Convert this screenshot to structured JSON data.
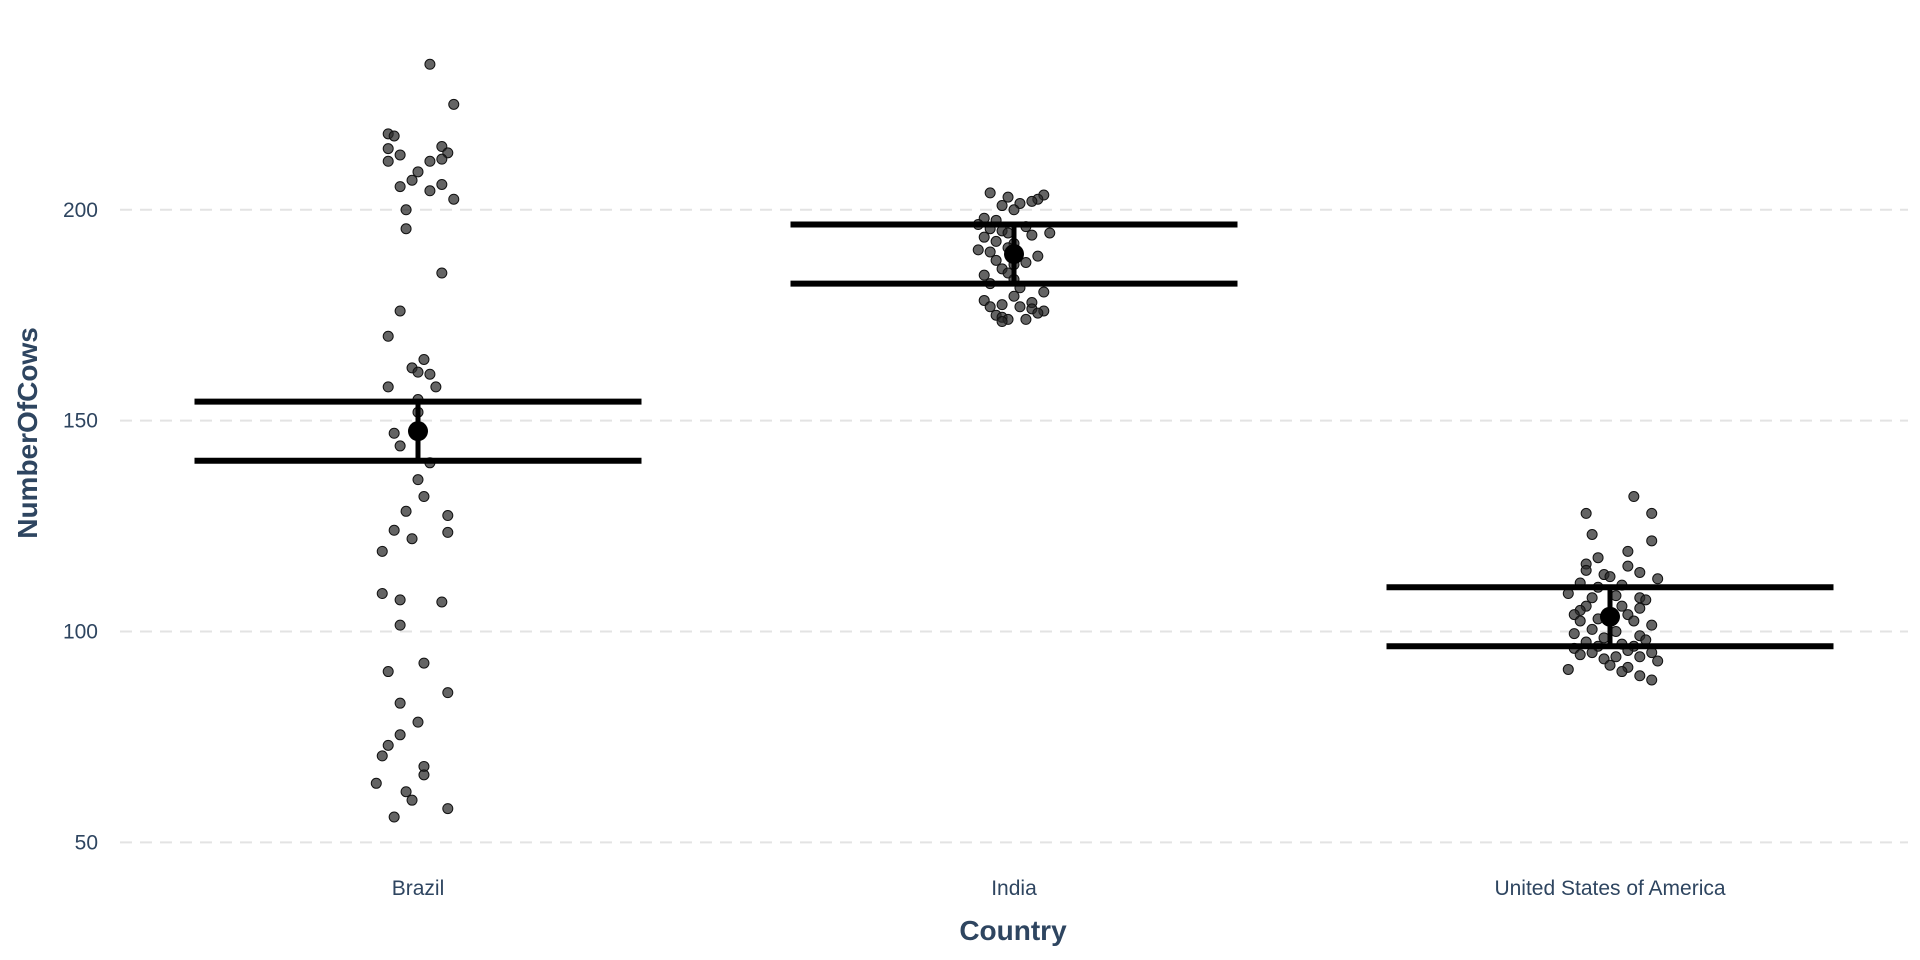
{
  "chart_data": {
    "type": "scatter",
    "xlabel": "Country",
    "ylabel": "NumberOfCows",
    "categories": [
      "Brazil",
      "India",
      "United States of America"
    ],
    "ylim": [
      47,
      245
    ],
    "yticks": [
      50,
      100,
      150,
      200
    ],
    "grid": "horizontal dashed",
    "groups": [
      {
        "name": "Brazil",
        "points": [
          {
            "dx": 0.02,
            "y": 234.5
          },
          {
            "dx": 0.06,
            "y": 225
          },
          {
            "dx": -0.05,
            "y": 218
          },
          {
            "dx": -0.04,
            "y": 217.5
          },
          {
            "dx": 0.04,
            "y": 215
          },
          {
            "dx": -0.05,
            "y": 214.5
          },
          {
            "dx": 0.05,
            "y": 213.5
          },
          {
            "dx": -0.03,
            "y": 213
          },
          {
            "dx": -0.05,
            "y": 211.5
          },
          {
            "dx": 0.02,
            "y": 211.5
          },
          {
            "dx": 0.04,
            "y": 212
          },
          {
            "dx": 0.0,
            "y": 209
          },
          {
            "dx": -0.01,
            "y": 207
          },
          {
            "dx": 0.04,
            "y": 206
          },
          {
            "dx": -0.03,
            "y": 205.5
          },
          {
            "dx": 0.02,
            "y": 204.5
          },
          {
            "dx": 0.06,
            "y": 202.5
          },
          {
            "dx": -0.02,
            "y": 200
          },
          {
            "dx": -0.02,
            "y": 195.5
          },
          {
            "dx": 0.04,
            "y": 185
          },
          {
            "dx": -0.03,
            "y": 176
          },
          {
            "dx": -0.05,
            "y": 170
          },
          {
            "dx": 0.01,
            "y": 164.5
          },
          {
            "dx": -0.01,
            "y": 162.5
          },
          {
            "dx": 0.0,
            "y": 161.5
          },
          {
            "dx": 0.02,
            "y": 161
          },
          {
            "dx": -0.05,
            "y": 158
          },
          {
            "dx": 0.03,
            "y": 158
          },
          {
            "dx": 0.0,
            "y": 155
          },
          {
            "dx": 0.0,
            "y": 152
          },
          {
            "dx": -0.04,
            "y": 147
          },
          {
            "dx": -0.03,
            "y": 144
          },
          {
            "dx": 0.02,
            "y": 140
          },
          {
            "dx": 0.0,
            "y": 136
          },
          {
            "dx": 0.01,
            "y": 132
          },
          {
            "dx": -0.02,
            "y": 128.5
          },
          {
            "dx": 0.05,
            "y": 127.5
          },
          {
            "dx": -0.04,
            "y": 124
          },
          {
            "dx": 0.05,
            "y": 123.5
          },
          {
            "dx": -0.01,
            "y": 122
          },
          {
            "dx": -0.06,
            "y": 119
          },
          {
            "dx": -0.06,
            "y": 109
          },
          {
            "dx": -0.03,
            "y": 107.5
          },
          {
            "dx": 0.04,
            "y": 107
          },
          {
            "dx": -0.03,
            "y": 101.5
          },
          {
            "dx": 0.01,
            "y": 92.5
          },
          {
            "dx": -0.05,
            "y": 90.5
          },
          {
            "dx": 0.05,
            "y": 85.5
          },
          {
            "dx": -0.03,
            "y": 83
          },
          {
            "dx": 0.0,
            "y": 78.5
          },
          {
            "dx": -0.03,
            "y": 75.5
          },
          {
            "dx": -0.05,
            "y": 73
          },
          {
            "dx": -0.06,
            "y": 70.5
          },
          {
            "dx": 0.01,
            "y": 68
          },
          {
            "dx": 0.01,
            "y": 66
          },
          {
            "dx": -0.07,
            "y": 64
          },
          {
            "dx": -0.02,
            "y": 62
          },
          {
            "dx": -0.01,
            "y": 60
          },
          {
            "dx": 0.05,
            "y": 58
          },
          {
            "dx": -0.04,
            "y": 56
          }
        ],
        "mean": 147.5,
        "ci": [
          140.5,
          154.5
        ]
      },
      {
        "name": "India",
        "points": [
          {
            "dx": -0.04,
            "y": 204
          },
          {
            "dx": 0.05,
            "y": 203.5
          },
          {
            "dx": -0.01,
            "y": 203
          },
          {
            "dx": 0.04,
            "y": 202.5
          },
          {
            "dx": 0.03,
            "y": 202
          },
          {
            "dx": 0.01,
            "y": 201.5
          },
          {
            "dx": -0.02,
            "y": 201
          },
          {
            "dx": 0.0,
            "y": 200
          },
          {
            "dx": -0.05,
            "y": 198
          },
          {
            "dx": -0.03,
            "y": 197.5
          },
          {
            "dx": -0.06,
            "y": 196.5
          },
          {
            "dx": 0.02,
            "y": 196
          },
          {
            "dx": -0.04,
            "y": 195.5
          },
          {
            "dx": -0.02,
            "y": 195
          },
          {
            "dx": -0.01,
            "y": 194.5
          },
          {
            "dx": 0.06,
            "y": 194.5
          },
          {
            "dx": 0.03,
            "y": 194
          },
          {
            "dx": -0.05,
            "y": 193.5
          },
          {
            "dx": -0.03,
            "y": 192.5
          },
          {
            "dx": 0.0,
            "y": 192
          },
          {
            "dx": -0.01,
            "y": 191
          },
          {
            "dx": -0.06,
            "y": 190.5
          },
          {
            "dx": -0.04,
            "y": 190
          },
          {
            "dx": 0.04,
            "y": 189
          },
          {
            "dx": -0.03,
            "y": 188
          },
          {
            "dx": 0.02,
            "y": 187.5
          },
          {
            "dx": 0.0,
            "y": 187
          },
          {
            "dx": -0.02,
            "y": 186
          },
          {
            "dx": -0.01,
            "y": 185
          },
          {
            "dx": -0.05,
            "y": 184.5
          },
          {
            "dx": 0.0,
            "y": 183.5
          },
          {
            "dx": -0.04,
            "y": 182.5
          },
          {
            "dx": 0.01,
            "y": 181.5
          },
          {
            "dx": 0.05,
            "y": 180.5
          },
          {
            "dx": 0.0,
            "y": 179.5
          },
          {
            "dx": -0.05,
            "y": 178.5
          },
          {
            "dx": 0.03,
            "y": 178
          },
          {
            "dx": -0.02,
            "y": 177.5
          },
          {
            "dx": -0.04,
            "y": 177
          },
          {
            "dx": 0.01,
            "y": 177
          },
          {
            "dx": 0.03,
            "y": 176.5
          },
          {
            "dx": 0.05,
            "y": 176
          },
          {
            "dx": 0.04,
            "y": 175.5
          },
          {
            "dx": -0.03,
            "y": 175
          },
          {
            "dx": -0.02,
            "y": 174.5
          },
          {
            "dx": -0.01,
            "y": 174
          },
          {
            "dx": 0.02,
            "y": 174
          },
          {
            "dx": -0.02,
            "y": 173.5
          }
        ],
        "mean": 189.5,
        "ci": [
          182.5,
          196.5
        ]
      },
      {
        "name": "United States of America",
        "points": [
          {
            "dx": 0.04,
            "y": 132
          },
          {
            "dx": -0.04,
            "y": 128
          },
          {
            "dx": 0.07,
            "y": 128
          },
          {
            "dx": -0.03,
            "y": 123
          },
          {
            "dx": 0.07,
            "y": 121.5
          },
          {
            "dx": 0.03,
            "y": 119
          },
          {
            "dx": -0.02,
            "y": 117.5
          },
          {
            "dx": -0.04,
            "y": 116
          },
          {
            "dx": 0.03,
            "y": 115.5
          },
          {
            "dx": -0.04,
            "y": 114.5
          },
          {
            "dx": 0.05,
            "y": 114
          },
          {
            "dx": -0.01,
            "y": 113.5
          },
          {
            "dx": 0.0,
            "y": 113
          },
          {
            "dx": 0.08,
            "y": 112.5
          },
          {
            "dx": -0.05,
            "y": 111.5
          },
          {
            "dx": 0.02,
            "y": 111
          },
          {
            "dx": -0.02,
            "y": 110.5
          },
          {
            "dx": -0.07,
            "y": 109
          },
          {
            "dx": 0.01,
            "y": 108.5
          },
          {
            "dx": -0.03,
            "y": 108
          },
          {
            "dx": 0.05,
            "y": 108
          },
          {
            "dx": 0.06,
            "y": 107.5
          },
          {
            "dx": -0.04,
            "y": 106
          },
          {
            "dx": 0.02,
            "y": 106
          },
          {
            "dx": 0.05,
            "y": 105.5
          },
          {
            "dx": -0.05,
            "y": 105
          },
          {
            "dx": 0.0,
            "y": 104.5
          },
          {
            "dx": -0.06,
            "y": 104
          },
          {
            "dx": 0.03,
            "y": 104
          },
          {
            "dx": -0.02,
            "y": 103
          },
          {
            "dx": -0.05,
            "y": 102.5
          },
          {
            "dx": 0.04,
            "y": 102.5
          },
          {
            "dx": 0.07,
            "y": 101.5
          },
          {
            "dx": -0.03,
            "y": 100.5
          },
          {
            "dx": 0.01,
            "y": 100
          },
          {
            "dx": -0.06,
            "y": 99.5
          },
          {
            "dx": 0.05,
            "y": 99
          },
          {
            "dx": -0.01,
            "y": 98.5
          },
          {
            "dx": 0.06,
            "y": 98
          },
          {
            "dx": -0.04,
            "y": 97.5
          },
          {
            "dx": 0.02,
            "y": 97
          },
          {
            "dx": -0.02,
            "y": 96.5
          },
          {
            "dx": 0.04,
            "y": 96.5
          },
          {
            "dx": -0.06,
            "y": 96
          },
          {
            "dx": 0.03,
            "y": 95.5
          },
          {
            "dx": -0.03,
            "y": 95
          },
          {
            "dx": 0.07,
            "y": 95
          },
          {
            "dx": -0.05,
            "y": 94.5
          },
          {
            "dx": 0.01,
            "y": 94
          },
          {
            "dx": 0.05,
            "y": 94
          },
          {
            "dx": -0.01,
            "y": 93.5
          },
          {
            "dx": 0.08,
            "y": 93
          },
          {
            "dx": 0.0,
            "y": 92
          },
          {
            "dx": 0.03,
            "y": 91.5
          },
          {
            "dx": -0.07,
            "y": 91
          },
          {
            "dx": 0.02,
            "y": 90.5
          },
          {
            "dx": 0.05,
            "y": 89.5
          },
          {
            "dx": 0.07,
            "y": 88.5
          }
        ],
        "mean": 103.5,
        "ci": [
          96.5,
          110.5
        ]
      }
    ]
  }
}
